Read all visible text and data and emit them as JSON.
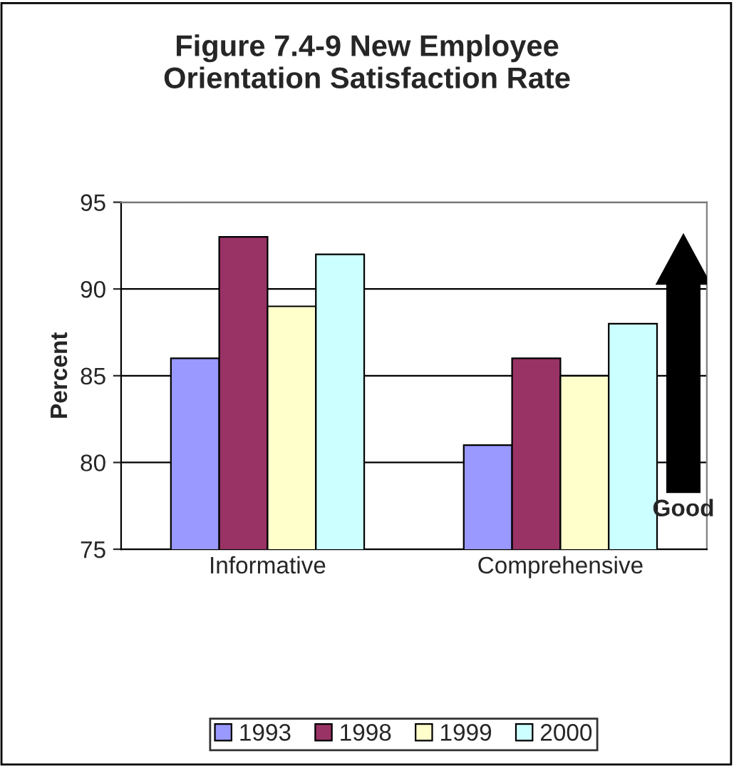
{
  "chart_data": {
    "type": "bar",
    "title": "Figure 7.4-9 New Employee\nOrientation Satisfaction Rate",
    "ylabel": "Percent",
    "categories": [
      "Informative",
      "Comprehensive"
    ],
    "series": [
      {
        "name": "1993",
        "color": "#9999ff",
        "values": [
          86,
          81
        ]
      },
      {
        "name": "1998",
        "color": "#993366",
        "values": [
          93,
          86
        ]
      },
      {
        "name": "1999",
        "color": "#ffffcc",
        "values": [
          89,
          85
        ]
      },
      {
        "name": "2000",
        "color": "#ccffff",
        "values": [
          92,
          88
        ]
      }
    ],
    "ylim": [
      75,
      95
    ],
    "yticks": [
      75,
      80,
      85,
      90,
      95
    ],
    "grid": "y",
    "legend": "bottom",
    "annotations": [
      "Good"
    ]
  }
}
